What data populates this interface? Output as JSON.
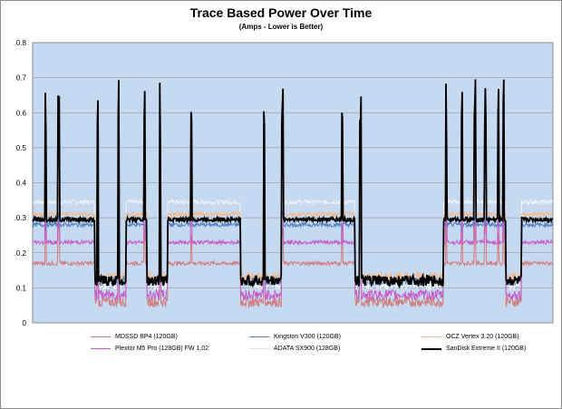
{
  "chart_data": {
    "type": "line",
    "title": "Trace Based Power Over Time",
    "subtitle": "(Amps - Lower is Better)",
    "xlabel": "",
    "ylabel": "",
    "ylim": [
      0,
      0.8
    ],
    "yticks": [
      "0",
      "0.1",
      "0.2",
      "0.3",
      "0.4",
      "0.5",
      "0.6",
      "0.7",
      "0.8"
    ],
    "grid": true,
    "legend_position": "bottom",
    "plot_background": "#c5d9f1",
    "series": [
      {
        "name": "MDSSD BP4 (120GB)",
        "color": "#d27c7c",
        "idle": 0.06,
        "active": 0.17,
        "spike": 0.3
      },
      {
        "name": "Kingston V300 (120GB)",
        "color": "#4f7fbf",
        "idle": 0.12,
        "active": 0.28,
        "spike": 0.32
      },
      {
        "name": "OCZ Vertex 3.20 (120GB)",
        "color": "#f7b98a",
        "idle": 0.13,
        "active": 0.31,
        "spike": 0.44
      },
      {
        "name": "Plextor M5 Pro (128GB) FW 1.02",
        "color": "#c55cc8",
        "idle": 0.08,
        "active": 0.23,
        "spike": 0.52
      },
      {
        "name": "ADATA SX900 (128GB)",
        "color": "#f2f2f2",
        "idle": 0.11,
        "active": 0.345,
        "spike": 0.47
      },
      {
        "name": "SanDisk Extreme II (120GB)",
        "color": "#000000",
        "idle": 0.12,
        "active": 0.295,
        "spike": 0.7
      }
    ]
  }
}
